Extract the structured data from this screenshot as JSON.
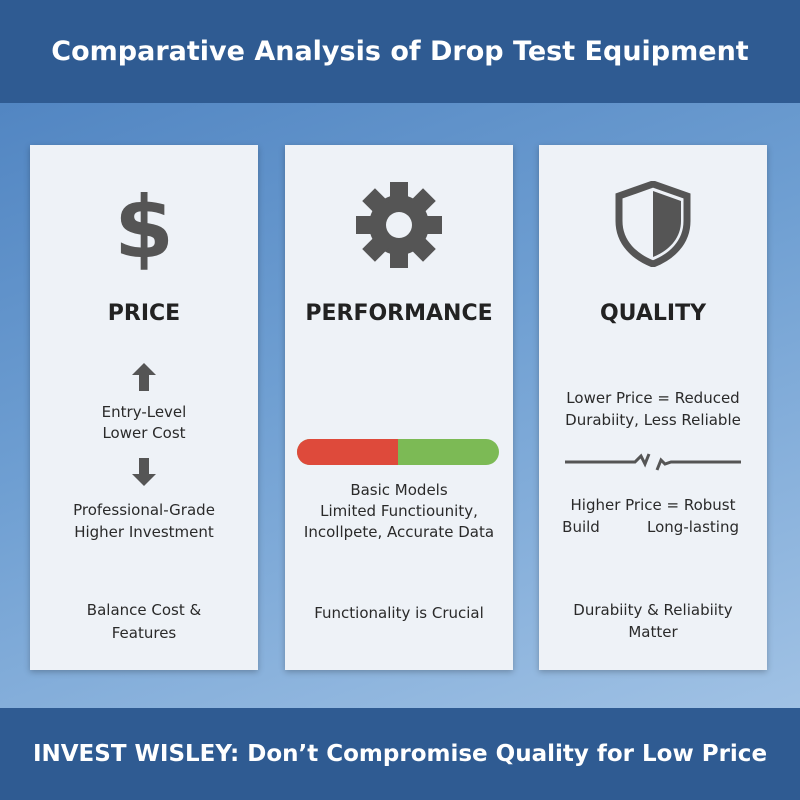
{
  "header": {
    "title": "Comparative Analysis of Drop Test Equipment"
  },
  "cards": [
    {
      "heading": "PRICE",
      "upper_text": [
        "Entry-Level",
        "Lower Cost"
      ],
      "lower_text": [
        "Professional-Grade",
        "Higher Investment"
      ],
      "note": [
        "Balance Cost &",
        "Features"
      ]
    },
    {
      "heading": "PERFORMANCE",
      "text": [
        "Basic Models",
        "Limited Functiounity,",
        "Incollpete, Accurate Data"
      ],
      "note": [
        "Functionality is Crucial"
      ]
    },
    {
      "heading": "QUALITY",
      "upper_text": [
        "Lower Price = Reduced",
        "Durabiity, Less Reliable"
      ],
      "lower_text": [
        "Higher Price = Robust",
        "Build",
        "Long-lasting"
      ],
      "note": [
        "Durabiity & Reliabiity",
        "Matter"
      ]
    }
  ],
  "footer": {
    "text": "INVEST WISLEY: Don’t Compromise Quality for Low Price"
  }
}
